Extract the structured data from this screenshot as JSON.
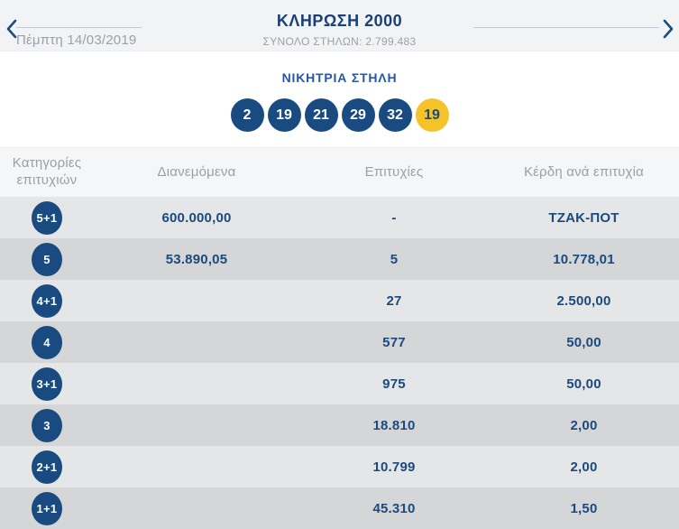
{
  "colors": {
    "brand_navy": "#1a4078",
    "brand_royal": "#2757a6",
    "ball_blue": "#1a4b80",
    "joker_yellow": "#f5c328",
    "row_light": "#e4e6e8",
    "row_dark": "#d4d6d8",
    "muted_gray": "#9ba1a9"
  },
  "icons": {
    "prev": "chevron-left-icon",
    "next": "chevron-right-icon"
  },
  "topbar": {
    "title": "ΚΛΗΡΩΣΗ 2000",
    "subtitle": "ΣΥΝΟΛΟ ΣΤΗΛΩΝ: 2.799.483",
    "date": "Πέμπτη 14/03/2019"
  },
  "winning": {
    "title": "ΝΙΚΗΤΡΙΑ ΣΤΗΛΗ",
    "numbers": [
      "2",
      "19",
      "21",
      "29",
      "32"
    ],
    "joker": "19"
  },
  "table": {
    "headers": {
      "category_line1": "Κατηγορίες",
      "category_line2": "επιτυχιών",
      "distributed": "Διανεμόμενα",
      "winners": "Επιτυχίες",
      "prize": "Κέρδη ανά επιτυχία"
    },
    "rows": [
      {
        "category": "5+1",
        "distributed": "600.000,00",
        "winners": "-",
        "prize": "ΤΖΑΚ-ΠΟΤ"
      },
      {
        "category": "5",
        "distributed": "53.890,05",
        "winners": "5",
        "prize": "10.778,01"
      },
      {
        "category": "4+1",
        "distributed": "",
        "winners": "27",
        "prize": "2.500,00"
      },
      {
        "category": "4",
        "distributed": "",
        "winners": "577",
        "prize": "50,00"
      },
      {
        "category": "3+1",
        "distributed": "",
        "winners": "975",
        "prize": "50,00"
      },
      {
        "category": "3",
        "distributed": "",
        "winners": "18.810",
        "prize": "2,00"
      },
      {
        "category": "2+1",
        "distributed": "",
        "winners": "10.799",
        "prize": "2,00"
      },
      {
        "category": "1+1",
        "distributed": "",
        "winners": "45.310",
        "prize": "1,50"
      }
    ]
  }
}
